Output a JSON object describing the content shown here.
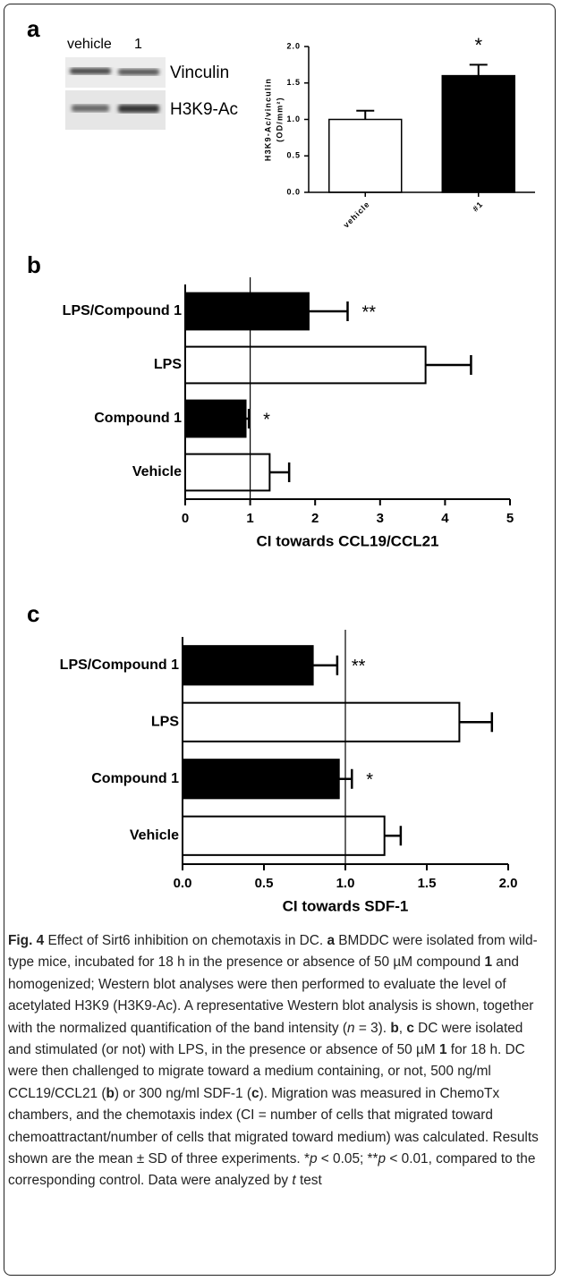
{
  "panels": [
    "a",
    "b",
    "c"
  ],
  "blot": {
    "lanes": [
      "vehicle",
      "1"
    ],
    "bands": [
      "Vinculin",
      "H3K9-Ac"
    ]
  },
  "chart_data": [
    {
      "type": "bar",
      "horizontal": false,
      "ylabel": [
        "H3K9-Ac/vinculin",
        "(OD/mm²)"
      ],
      "categories": [
        "vehicle",
        "#1"
      ],
      "values": [
        1.0,
        1.6
      ],
      "errors": [
        0.12,
        0.15
      ],
      "colors": [
        "#ffffff",
        "#000000"
      ],
      "significance": [
        null,
        "*"
      ],
      "ylim": [
        0,
        2
      ],
      "yticks": [
        {
          "value": 0,
          "label": "0.0"
        },
        {
          "value": 0.5,
          "label": "0.5"
        },
        {
          "value": 1,
          "label": "1.0"
        },
        {
          "value": 1.5,
          "label": "1.5"
        },
        {
          "value": 2,
          "label": "2.0"
        }
      ]
    },
    {
      "type": "bar",
      "horizontal": true,
      "xlabel": "CI towards CCL19/CCL21",
      "categories": [
        "LPS/Compound 1",
        "LPS",
        "Compound 1",
        "Vehicle"
      ],
      "values": [
        1.9,
        3.7,
        0.93,
        1.3
      ],
      "errors": [
        0.6,
        0.7,
        0.05,
        0.3
      ],
      "colors": [
        "#000000",
        "#ffffff",
        "#000000",
        "#ffffff"
      ],
      "significance": [
        "**",
        null,
        "*",
        null
      ],
      "reference_line": 1,
      "xlim": [
        0,
        5
      ],
      "xticks": [
        0,
        1,
        2,
        3,
        4,
        5
      ]
    },
    {
      "type": "bar",
      "horizontal": true,
      "xlabel": "CI towards SDF-1",
      "categories": [
        "LPS/Compound 1",
        "LPS",
        "Compound 1",
        "Vehicle"
      ],
      "values": [
        0.8,
        1.7,
        0.96,
        1.24
      ],
      "errors": [
        0.15,
        0.2,
        0.08,
        0.1
      ],
      "colors": [
        "#000000",
        "#ffffff",
        "#000000",
        "#ffffff"
      ],
      "significance": [
        "**",
        null,
        "*",
        null
      ],
      "reference_line": 1,
      "xlim": [
        0,
        2
      ],
      "xticks": [
        {
          "value": 0,
          "label": "0.0"
        },
        {
          "value": 0.5,
          "label": "0.5"
        },
        {
          "value": 1,
          "label": "1.0"
        },
        {
          "value": 1.5,
          "label": "1.5"
        },
        {
          "value": 2,
          "label": "2.0"
        }
      ]
    }
  ],
  "caption": {
    "parts": [
      "Fig. 4",
      " Effect of Sirt6 inhibition on chemotaxis in DC. ",
      "a",
      " BMDDC were isolated from wild-type mice, incubated for 18 h in the presence or absence of 50 µM compound ",
      "1",
      " and homogenized; Western blot analyses were then performed to evaluate the level of acetylated H3K9 (H3K9-Ac). A representative Western blot analysis is shown, together with the normalized quantification of the band intensity (",
      "n",
      " = 3). ",
      "b",
      ", ",
      "c",
      " DC were isolated and stimulated (or not) with LPS, in the presence or absence of 50 µM ",
      "1",
      " for 18 h. DC were then challenged to migrate toward a medium containing, or not, 500 ng/ml CCL19/CCL21 (",
      "b",
      ") or 300 ng/ml SDF-1 (",
      "c",
      "). Migration was measured in ChemoTx chambers, and the chemotaxis index (CI = number of cells that migrated toward chemoattractant/number of cells that migrated toward medium) was calculated. Results shown are the mean ± SD of three experiments. *",
      "p",
      " < 0.05; **",
      "p",
      " < 0.01, compared to the corresponding control. Data were analyzed by ",
      "t",
      " test"
    ]
  }
}
